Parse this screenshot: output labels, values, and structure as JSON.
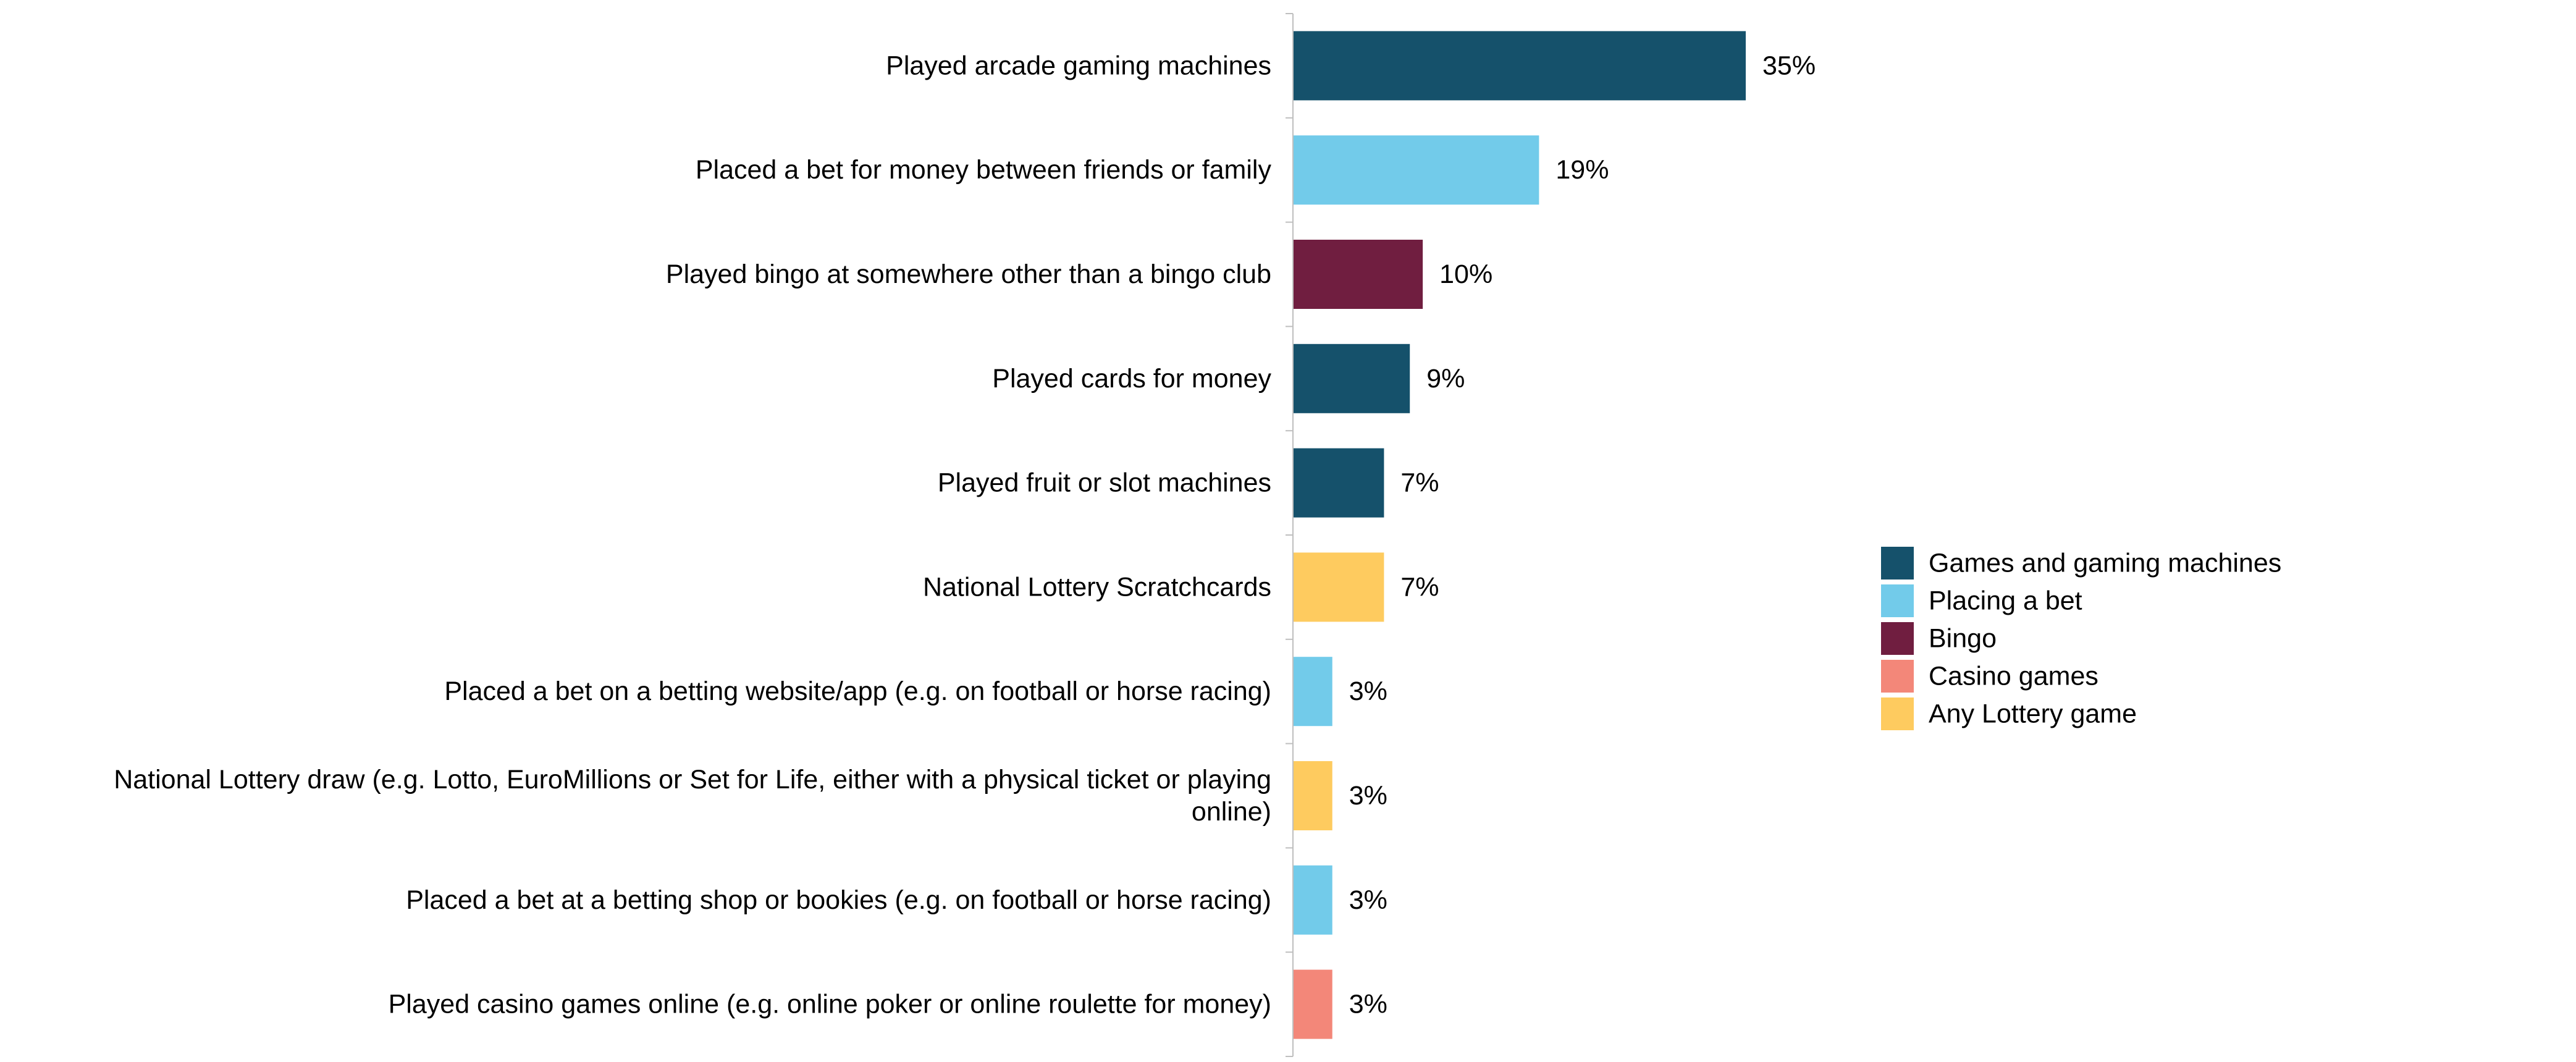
{
  "chart_data": {
    "type": "bar",
    "orientation": "horizontal",
    "value_suffix": "%",
    "xlim": [
      0,
      35
    ],
    "grid": false,
    "legend_placement": "right",
    "categories": [
      "Played arcade gaming machines",
      "Placed a bet for money between friends or family",
      "Played bingo at somewhere other than a bingo club",
      "Played cards for money",
      "Played fruit or slot machines",
      "National Lottery Scratchcards",
      "Placed a bet on a betting website/app (e.g. on football or horse racing)",
      "National Lottery draw (e.g. Lotto, EuroMillions or Set for Life, either with a physical ticket or playing online)",
      "Placed a bet at a betting shop or bookies (e.g. on football or horse racing)",
      "Played casino games online (e.g. online poker or online roulette for money)"
    ],
    "category_lines": [
      [
        "Played arcade gaming machines"
      ],
      [
        "Placed a bet for money between friends or family"
      ],
      [
        "Played bingo at somewhere other than a bingo club"
      ],
      [
        "Played cards for money"
      ],
      [
        "Played fruit or slot machines"
      ],
      [
        "National Lottery Scratchcards"
      ],
      [
        "Placed a bet on a betting website/app (e.g. on football or horse racing)"
      ],
      [
        "National Lottery draw (e.g. Lotto, EuroMillions or Set for Life, either with a physical ticket or playing",
        "online)"
      ],
      [
        "Placed a bet at a betting shop or bookies (e.g. on football or horse racing)"
      ],
      [
        "Played casino games online (e.g. online poker or online roulette for money)"
      ]
    ],
    "values": [
      35,
      19,
      10,
      9,
      7,
      7,
      3,
      3,
      3,
      3
    ],
    "value_labels": [
      "35%",
      "19%",
      "10%",
      "9%",
      "7%",
      "7%",
      "3%",
      "3%",
      "3%",
      "3%"
    ],
    "groups": [
      "Games and gaming machines",
      "Placing a bet",
      "Bingo",
      "Games and gaming machines",
      "Games and gaming machines",
      "Any Lottery game",
      "Placing a bet",
      "Any Lottery game",
      "Placing a bet",
      "Casino games"
    ],
    "legend": [
      {
        "name": "Games and gaming machines",
        "color": "#15516B"
      },
      {
        "name": "Placing a bet",
        "color": "#72CBEA"
      },
      {
        "name": "Bingo",
        "color": "#701E40"
      },
      {
        "name": "Casino games",
        "color": "#F38779"
      },
      {
        "name": "Any Lottery game",
        "color": "#FECB5F"
      }
    ],
    "axis_color": "#BFBFBF"
  }
}
